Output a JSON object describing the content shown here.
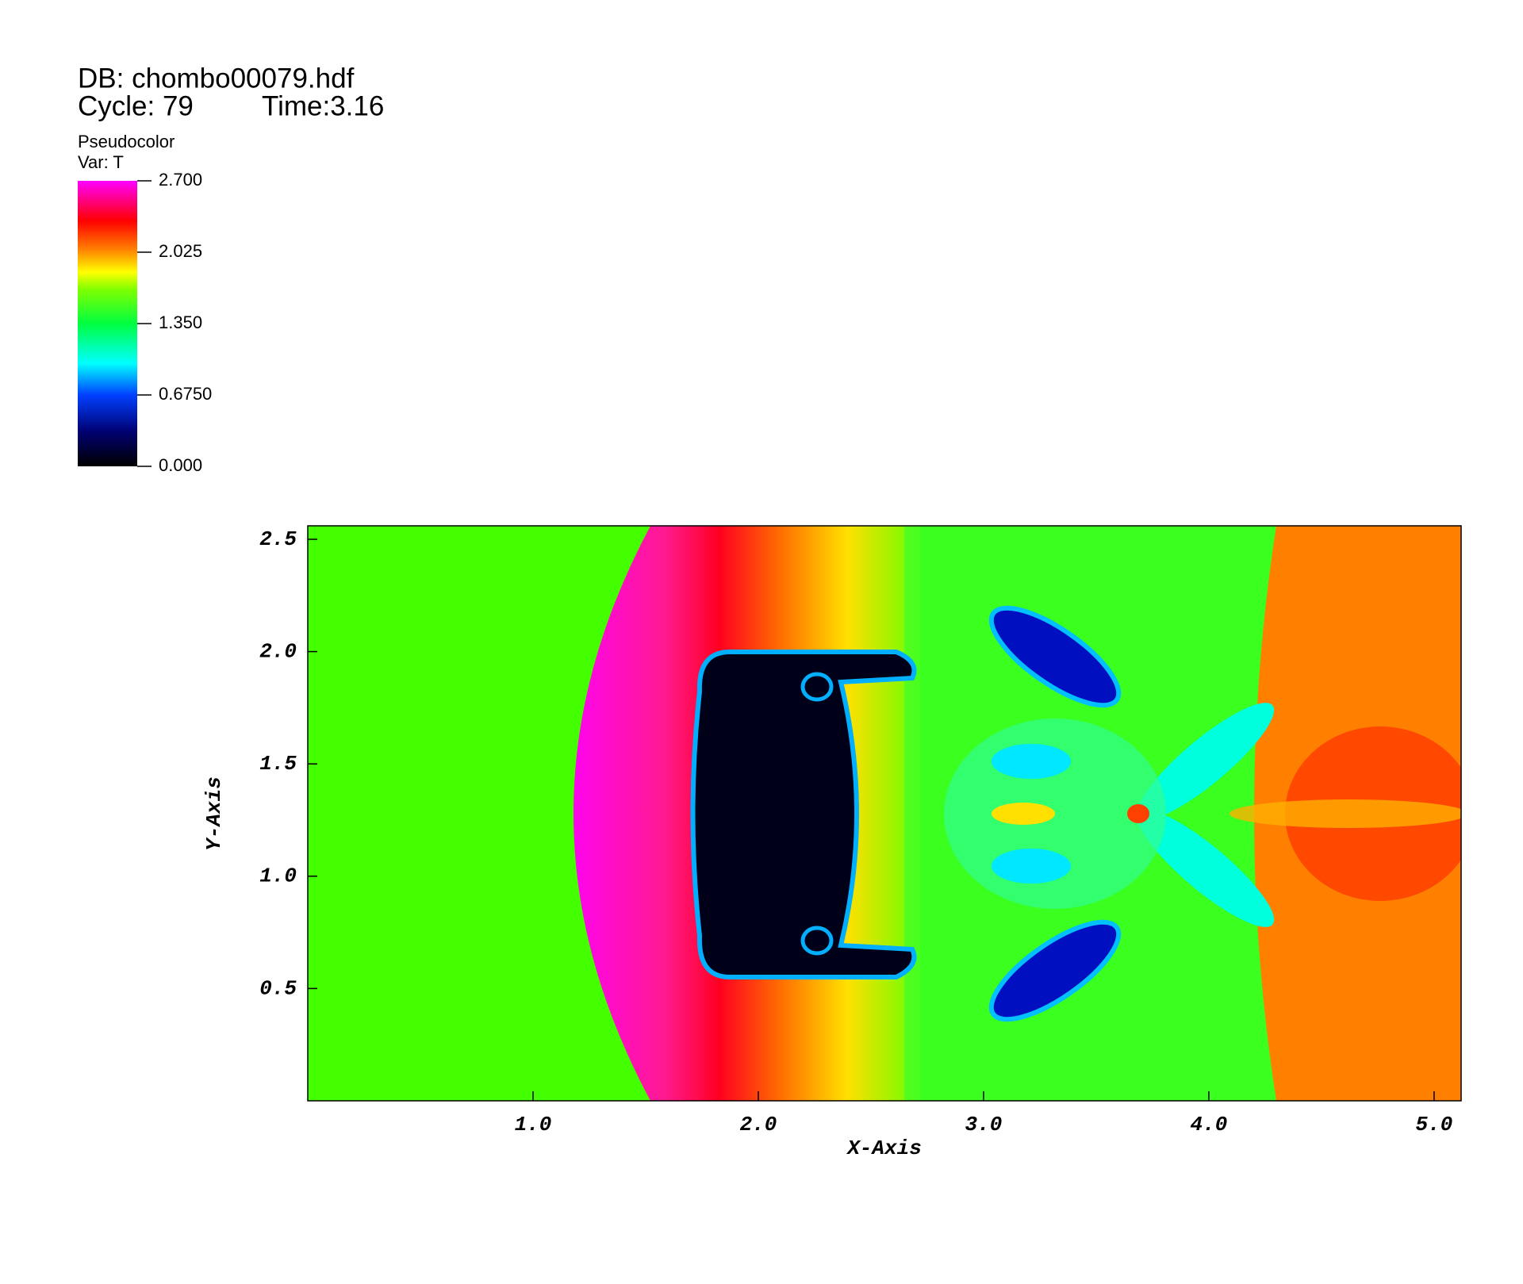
{
  "header": {
    "db": "DB: chombo00079.hdf",
    "cycle": "Cycle: 79",
    "time": "Time:3.16"
  },
  "chart_data": {
    "type": "pseudocolor",
    "plot_name": "Pseudocolor",
    "variable": "Var: T",
    "colorbar_lim": [
      0,
      2.7
    ],
    "colorbar_ticks": [
      {
        "value": 2.7,
        "label": "2.700"
      },
      {
        "value": 2.025,
        "label": "2.025"
      },
      {
        "value": 1.35,
        "label": "1.350"
      },
      {
        "value": 0.675,
        "label": "0.6750"
      },
      {
        "value": 0,
        "label": "0.000"
      }
    ],
    "xlabel": "X-Axis",
    "ylabel": "Y-Axis",
    "xlim": [
      0,
      5.12
    ],
    "ylim": [
      0,
      2.56
    ],
    "xticks": [
      {
        "value": 1,
        "label": "1.0"
      },
      {
        "value": 2,
        "label": "2.0"
      },
      {
        "value": 3,
        "label": "3.0"
      },
      {
        "value": 4,
        "label": "4.0"
      },
      {
        "value": 5,
        "label": "5.0"
      }
    ],
    "yticks": [
      0.5,
      {
        "value": 1,
        "label": "1.0"
      },
      1.5,
      {
        "value": 2,
        "label": "2.0"
      },
      2.5
    ]
  }
}
